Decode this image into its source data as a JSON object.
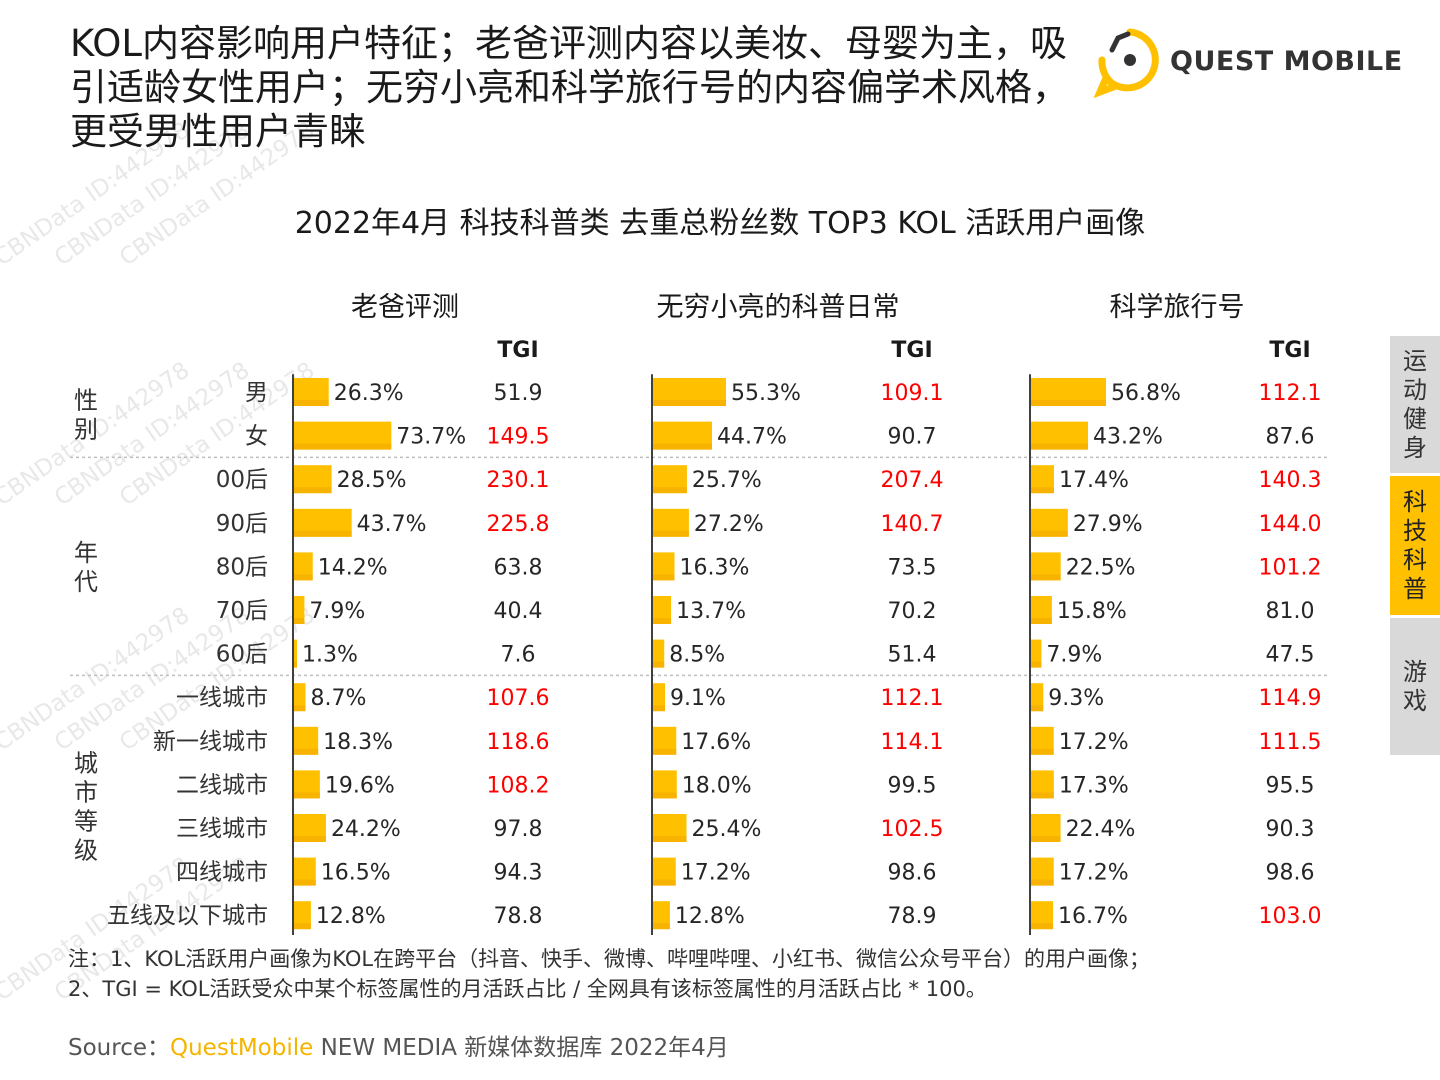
{
  "header": {
    "headline": "KOL内容影响用户特征；老爸评测内容以美妆、母婴为主，吸引适龄女性用户；无穷小亮和科学旅行号的内容偏学术风格，更受男性用户青睐",
    "logo_text": "QUEST MOBILE"
  },
  "watermark_text": "CBNData ID:442978",
  "sidebar": {
    "tabs": [
      {
        "label": "运动健身",
        "chars": [
          "运",
          "动",
          "健",
          "身"
        ],
        "active": false
      },
      {
        "label": "科技科普",
        "chars": [
          "科",
          "技",
          "科",
          "普"
        ],
        "active": true
      },
      {
        "label": "游戏",
        "chars": [
          "游",
          "戏"
        ],
        "active": false
      }
    ]
  },
  "colors": {
    "bar": "#ffc000",
    "bar_shade": "#f0a800",
    "tgi_high": "#ff0000",
    "tgi_normal": "#262626",
    "accent": "#ffc000",
    "tab_inactive": "#d9d9d9"
  },
  "chart_data": {
    "type": "bar",
    "title": "2022年4月 科技科普类 去重总粉丝数 TOP3 KOL 活跃用户画像",
    "tgi_header": "TGI",
    "groups": [
      {
        "name": "性别",
        "chars": [
          "性",
          "别"
        ],
        "categories": [
          "男",
          "女"
        ]
      },
      {
        "name": "年代",
        "chars": [
          "年",
          "代"
        ],
        "categories": [
          "00后",
          "90后",
          "80后",
          "70后",
          "60后"
        ]
      },
      {
        "name": "城市等级",
        "chars": [
          "城",
          "市",
          "等",
          "级"
        ],
        "categories": [
          "一线城市",
          "新一线城市",
          "二线城市",
          "三线城市",
          "四线城市",
          "五线及以下城市"
        ]
      }
    ],
    "series": [
      {
        "name": "老爸评测",
        "values": [
          26.3,
          73.7,
          28.5,
          43.7,
          14.2,
          7.9,
          1.3,
          8.7,
          18.3,
          19.6,
          24.2,
          16.5,
          12.8
        ],
        "tgi": [
          "51.9",
          "149.5",
          "230.1",
          "225.8",
          "63.8",
          "40.4",
          "7.6",
          "107.6",
          "118.6",
          "108.2",
          "97.8",
          "94.3",
          "78.8"
        ]
      },
      {
        "name": "无穷小亮的科普日常",
        "values": [
          55.3,
          44.7,
          25.7,
          27.2,
          16.3,
          13.7,
          8.5,
          9.1,
          17.6,
          18.0,
          25.4,
          17.2,
          12.8
        ],
        "tgi": [
          "109.1",
          "90.7",
          "207.4",
          "140.7",
          "73.5",
          "70.2",
          "51.4",
          "112.1",
          "114.1",
          "99.5",
          "102.5",
          "98.6",
          "78.9"
        ]
      },
      {
        "name": "科学旅行号",
        "values": [
          56.8,
          43.2,
          17.4,
          27.9,
          22.5,
          15.8,
          7.9,
          9.3,
          17.2,
          17.3,
          22.4,
          17.2,
          16.7
        ],
        "tgi": [
          "112.1",
          "87.6",
          "140.3",
          "144.0",
          "101.2",
          "81.0",
          "47.5",
          "114.9",
          "111.5",
          "95.5",
          "90.3",
          "98.6",
          "103.0"
        ]
      }
    ],
    "tgi_highlight_threshold": 100,
    "value_unit": "%"
  },
  "notes": {
    "line1": "注：1、KOL活跃用户画像为KOL在跨平台（抖音、快手、微博、哔哩哔哩、小红书、微信公众号平台）的用户画像；",
    "line2": "2、TGI = KOL活跃受众中某个标签属性的月活跃占比 / 全网具有该标签属性的月活跃占比 * 100。"
  },
  "source": {
    "prefix": "Source：",
    "brand": "QuestMobile",
    "rest": " NEW MEDIA 新媒体数据库 2022年4月"
  }
}
